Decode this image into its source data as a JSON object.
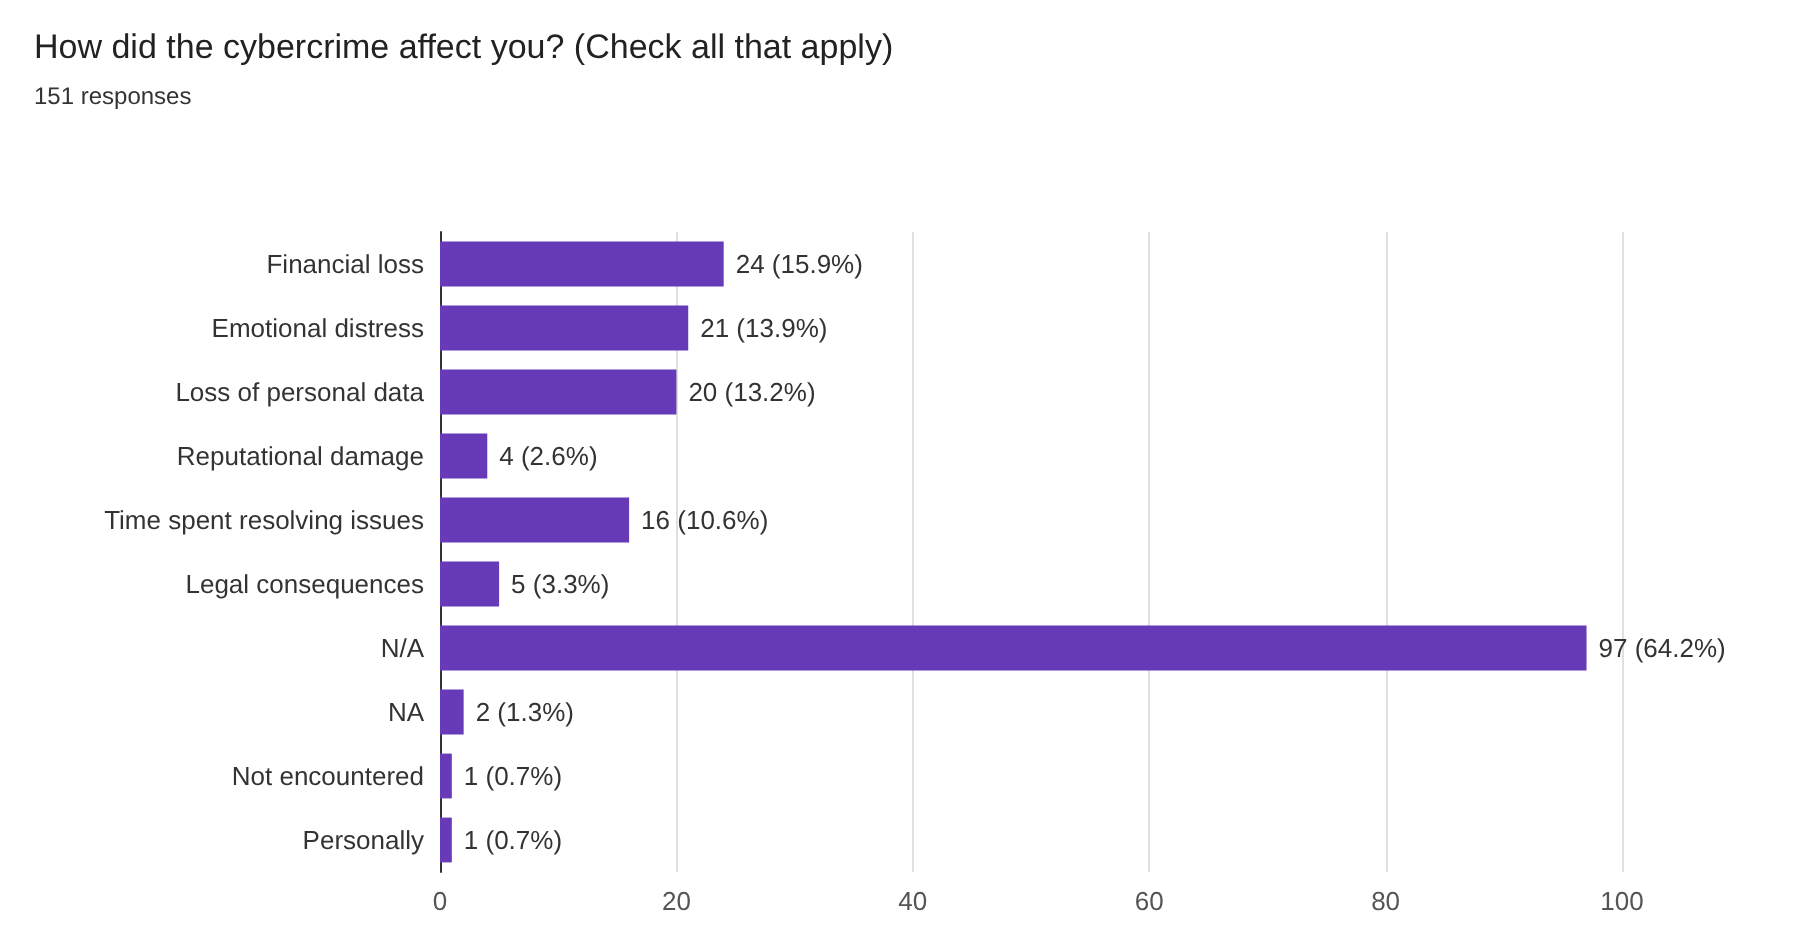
{
  "chart_data": {
    "type": "bar",
    "orientation": "horizontal",
    "title": "How did the cybercrime affect you? (Check all that apply)",
    "subtitle": "151 responses",
    "categories": [
      "Financial loss",
      "Emotional distress",
      "Loss of personal data",
      "Reputational damage",
      "Time spent resolving issues",
      "Legal consequences",
      "N/A",
      "NA",
      "Not encountered",
      "Personally"
    ],
    "values": [
      24,
      21,
      20,
      4,
      16,
      5,
      97,
      2,
      1,
      1
    ],
    "value_labels": [
      "24 (15.9%)",
      "21 (13.9%)",
      "20 (13.2%)",
      "4 (2.6%)",
      "16 (10.6%)",
      "5 (3.3%)",
      "97 (64.2%)",
      "2 (1.3%)",
      "1 (0.7%)",
      "1 (0.7%)"
    ],
    "color": "#673ab7",
    "xlim": [
      0,
      100
    ],
    "xticks": [
      0,
      20,
      40,
      60,
      80,
      100
    ],
    "grid": "x"
  }
}
